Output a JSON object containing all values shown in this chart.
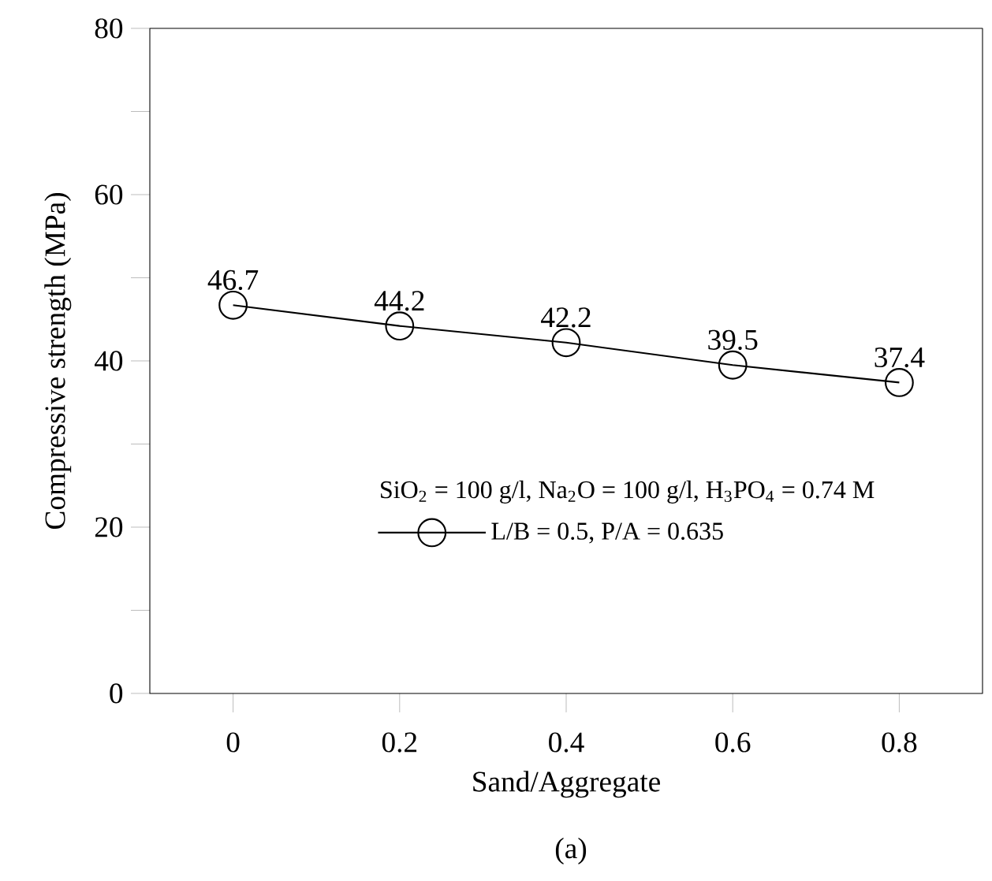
{
  "chart_data": {
    "type": "line",
    "xlabel": "Sand/Aggregate",
    "ylabel": "Compressive strength (MPa)",
    "legend_title": "SiO$_{2}$ = 100 g/l, Na$_{2}$O = 100 g/l, H$_{3}$PO$_{4}$ = 0.74 M",
    "x": [
      0,
      0.2,
      0.4,
      0.6,
      0.8
    ],
    "series": [
      {
        "name": "L/B = 0.5, P/A = 0.635",
        "color": "#000000",
        "values": [
          46.7,
          44.2,
          42.2,
          39.5,
          37.4
        ]
      }
    ],
    "data_labels": true,
    "marker": "circle",
    "line_style": "solid",
    "legend": "bottom right",
    "xlim": [
      -0.1,
      0.9
    ],
    "xticks": [
      0,
      0.2,
      0.4,
      0.6,
      0.8
    ],
    "ylim": [
      0,
      80
    ],
    "yticks": [
      0,
      {
        "value": 10,
        "label": null
      },
      20,
      {
        "value": 30,
        "label": null
      },
      40,
      {
        "value": 50,
        "label": null
      },
      60,
      {
        "value": 70,
        "label": null
      },
      80
    ],
    "annotations": [
      "(a)"
    ]
  }
}
